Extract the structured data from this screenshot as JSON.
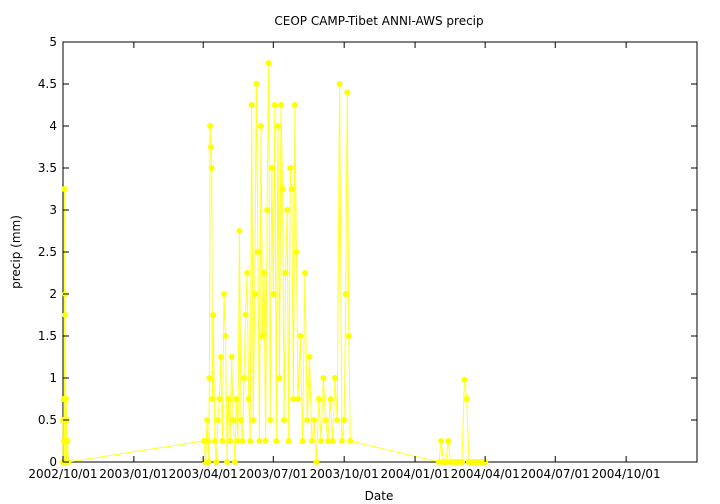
{
  "chart_data": {
    "type": "line",
    "title": "CEOP CAMP-Tibet ANNI-AWS  precip",
    "xlabel": "Date",
    "ylabel": "precip (mm)",
    "xlim": [
      "2002-10-01",
      "2005-01-01"
    ],
    "ylim": [
      0,
      5
    ],
    "yticks": [
      0,
      0.5,
      1,
      1.5,
      2,
      2.5,
      3,
      3.5,
      4,
      4.5,
      5
    ],
    "xticks": [
      "2002/10/01",
      "2003/01/01",
      "2003/04/01",
      "2003/07/01",
      "2003/10/01",
      "2004/01/01",
      "2004/04/01",
      "2004/07/01",
      "2004/10/01"
    ],
    "grid": false,
    "legend": "none",
    "series_color": "#ffff00",
    "series": [
      {
        "x": [
          "2002-10-01",
          "2002-10-01",
          "2002-10-02",
          "2002-10-02",
          "2002-10-02",
          "2002-10-03",
          "2002-10-03",
          "2002-10-03",
          "2002-10-04",
          "2002-10-04",
          "2002-10-04",
          "2002-10-05",
          "2002-10-05",
          "2002-10-06",
          "2002-10-06",
          "2002-10-06",
          "2002-10-07",
          "2002-10-07",
          "2002-10-08",
          "2003-04-02",
          "2003-04-04",
          "2003-04-06",
          "2003-04-07",
          "2003-04-08",
          "2003-04-09",
          "2003-04-10",
          "2003-04-11",
          "2003-04-12",
          "2003-04-13",
          "2003-04-14",
          "2003-04-16",
          "2003-04-18",
          "2003-04-20",
          "2003-04-22",
          "2003-04-24",
          "2003-04-26",
          "2003-04-28",
          "2003-04-30",
          "2003-05-02",
          "2003-05-04",
          "2003-05-06",
          "2003-05-08",
          "2003-05-10",
          "2003-05-12",
          "2003-05-14",
          "2003-05-16",
          "2003-05-18",
          "2003-05-20",
          "2003-05-22",
          "2003-05-24",
          "2003-05-26",
          "2003-05-28",
          "2003-05-30",
          "2003-06-01",
          "2003-06-03",
          "2003-06-05",
          "2003-06-07",
          "2003-06-09",
          "2003-06-11",
          "2003-06-13",
          "2003-06-15",
          "2003-06-17",
          "2003-06-19",
          "2003-06-21",
          "2003-06-23",
          "2003-06-25",
          "2003-06-27",
          "2003-06-29",
          "2003-07-01",
          "2003-07-03",
          "2003-07-05",
          "2003-07-07",
          "2003-07-09",
          "2003-07-11",
          "2003-07-13",
          "2003-07-15",
          "2003-07-17",
          "2003-07-19",
          "2003-07-21",
          "2003-07-23",
          "2003-07-25",
          "2003-07-27",
          "2003-07-29",
          "2003-07-31",
          "2003-08-02",
          "2003-08-05",
          "2003-08-08",
          "2003-08-11",
          "2003-08-14",
          "2003-08-17",
          "2003-08-20",
          "2003-08-23",
          "2003-08-26",
          "2003-08-29",
          "2003-09-01",
          "2003-09-04",
          "2003-09-07",
          "2003-09-10",
          "2003-09-13",
          "2003-09-16",
          "2003-09-19",
          "2003-09-22",
          "2003-09-25",
          "2003-09-28",
          "2003-10-01",
          "2003-10-03",
          "2003-10-05",
          "2003-10-07",
          "2003-10-09",
          "2004-02-01",
          "2004-02-04",
          "2004-02-07",
          "2004-02-10",
          "2004-02-13",
          "2004-02-16",
          "2004-02-19",
          "2004-02-22",
          "2004-02-25",
          "2004-02-28",
          "2004-03-02",
          "2004-03-05",
          "2004-03-08",
          "2004-03-11",
          "2004-03-14",
          "2004-03-17",
          "2004-03-20",
          "2004-03-23",
          "2004-03-26",
          "2004-03-29",
          "2004-04-01"
        ],
        "y": [
          0.5,
          0,
          0.25,
          0.75,
          0,
          0.5,
          3.25,
          0,
          2.0,
          0.25,
          1.75,
          0,
          0.75,
          0.25,
          0,
          0.5,
          0,
          0.25,
          0,
          0.25,
          0,
          0.5,
          0.25,
          0,
          1.0,
          4.0,
          3.75,
          3.5,
          0.75,
          1.75,
          0.25,
          0,
          0.5,
          0.75,
          1.25,
          0.25,
          2.0,
          1.5,
          0,
          0.75,
          0.25,
          1.25,
          0.5,
          0,
          0.75,
          0.25,
          2.75,
          0.5,
          0.25,
          1.0,
          1.75,
          2.25,
          0.75,
          0.25,
          4.25,
          0.5,
          2.0,
          4.5,
          2.5,
          0.25,
          4.0,
          1.5,
          2.25,
          0.25,
          3.0,
          4.75,
          0.5,
          3.5,
          2.0,
          4.25,
          0.25,
          4.0,
          1.0,
          4.25,
          3.25,
          0.5,
          2.25,
          3.0,
          0.25,
          3.5,
          3.25,
          0.75,
          4.25,
          2.5,
          0.75,
          1.5,
          0.25,
          2.25,
          0.5,
          1.25,
          0.25,
          0.5,
          0,
          0.75,
          0.25,
          1.0,
          0.5,
          0.25,
          0.75,
          0.25,
          1.0,
          0.5,
          4.5,
          0.25,
          0.5,
          2.0,
          4.4,
          1.5,
          0.25,
          0,
          0.25,
          0,
          0,
          0.25,
          0,
          0,
          0,
          0,
          0,
          0,
          0.98,
          0.75,
          0,
          0,
          0,
          0,
          0,
          0,
          0,
          0
        ]
      }
    ]
  }
}
